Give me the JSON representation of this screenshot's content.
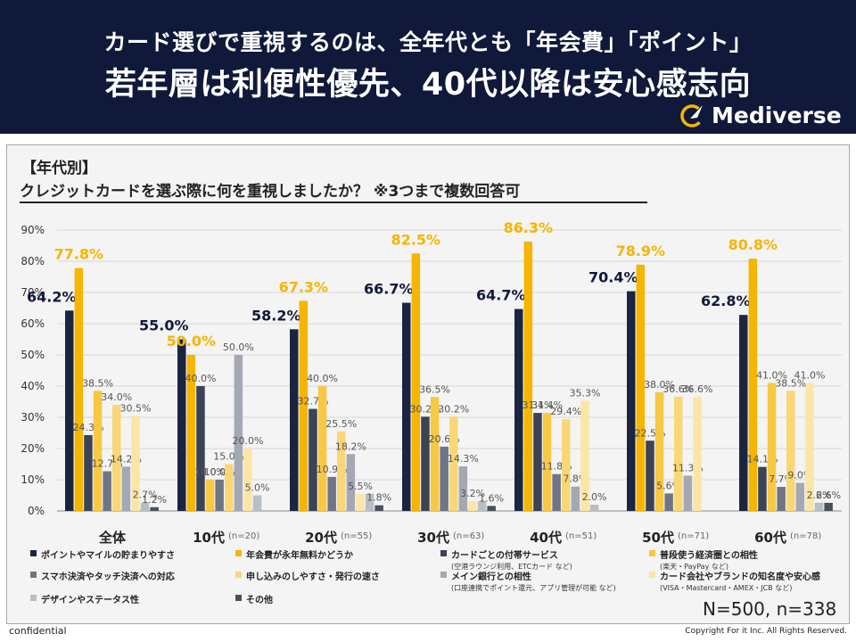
{
  "header": {
    "subtitle": "カード選びで重視するのは、全年代とも「年会費」「ポイント」",
    "title": "若年層は利便性優先、40代以降は安心感志向",
    "brand": "Mediverse"
  },
  "section_label": "【年代別】",
  "question": "クレジットカードを選ぶ際に何を重視しましたか？ ※3つまで複数回答可",
  "sample_note": "N=500, n=338",
  "footer": {
    "left": "confidential",
    "right": "Copyright For it Inc. All Rights Reserved."
  },
  "colors": {
    "navy": "#10193a",
    "accent": "#f5b500",
    "label_accent": "#e8a800"
  },
  "chart_data": {
    "type": "bar",
    "ylim": [
      0,
      90
    ],
    "ytick_labels": [
      "0%",
      "10%",
      "20%",
      "30%",
      "40%",
      "50%",
      "60%",
      "70%",
      "80%",
      "90%"
    ],
    "groups": [
      {
        "label": "全体",
        "n": ""
      },
      {
        "label": "10代",
        "n": "(n=20)"
      },
      {
        "label": "20代",
        "n": "(n=55)"
      },
      {
        "label": "30代",
        "n": "(n=63)"
      },
      {
        "label": "40代",
        "n": "(n=51)"
      },
      {
        "label": "50代",
        "n": "(n=71)"
      },
      {
        "label": "60代",
        "n": "(n=78)"
      }
    ],
    "series": [
      {
        "name": "ポイントやマイルの貯まりやすさ",
        "color": "#1b2540",
        "note": "",
        "values": [
          64.2,
          55.0,
          58.2,
          66.7,
          64.7,
          70.4,
          62.8
        ]
      },
      {
        "name": "年会費が永年無料かどうか",
        "color": "#f5b500",
        "note": "",
        "values": [
          77.8,
          50.0,
          67.3,
          82.5,
          86.3,
          78.9,
          80.8
        ]
      },
      {
        "name": "カードごとの付帯サービス",
        "color": "#3b4354",
        "note": "(空港ラウンジ利用、ETCカード など)",
        "values": [
          24.3,
          40.0,
          32.7,
          30.2,
          31.4,
          22.5,
          14.1
        ]
      },
      {
        "name": "普段使う経済圏との相性",
        "color": "#f7c844",
        "note": "(楽天・PayPay など)",
        "values": [
          38.5,
          10.0,
          40.0,
          36.5,
          31.4,
          38.0,
          41.0
        ]
      },
      {
        "name": "スマホ決済やタッチ決済への対応",
        "color": "#6f7584",
        "note": "",
        "values": [
          12.7,
          10.0,
          10.9,
          20.6,
          11.8,
          5.6,
          7.7
        ]
      },
      {
        "name": "申し込みのしやすさ・発行の速さ",
        "color": "#f9d777",
        "note": "",
        "values": [
          34.0,
          15.0,
          25.5,
          30.2,
          29.4,
          36.6,
          38.5
        ]
      },
      {
        "name": "メイン銀行との相性",
        "color": "#a3a8b4",
        "note": "(口座連携でポイント還元、アプリ管理が可能 など)",
        "values": [
          14.2,
          50.0,
          18.2,
          14.3,
          7.8,
          11.3,
          9.0
        ]
      },
      {
        "name": "カード会社やブランドの知名度や安心感",
        "color": "#fbe6a6",
        "note": "(VISA・Mastercard・AMEX・JCB など)",
        "values": [
          30.5,
          20.0,
          5.5,
          3.2,
          35.3,
          36.6,
          41.0
        ]
      },
      {
        "name": "デザインやステータス性",
        "color": "#b9bdc6",
        "note": "",
        "values": [
          2.7,
          5.0,
          5.5,
          3.2,
          2.0,
          0.0,
          2.6
        ]
      },
      {
        "name": "その他",
        "color": "#4a4f5a",
        "note": "",
        "values": [
          1.2,
          0.0,
          1.8,
          1.6,
          0.0,
          0.0,
          2.6
        ]
      }
    ],
    "value_labels": [
      [
        "64.2%",
        "77.8%",
        "24.3%",
        "38.5%",
        "12.7%",
        "34.0%",
        "14.2%",
        "30.5%",
        "2.7%",
        "1.2%"
      ],
      [
        "55.0%",
        "50.0%",
        "40.0%",
        "10.0%",
        "10.0%",
        "15.0%",
        "50.0%",
        "20.0%",
        "5.0%",
        ""
      ],
      [
        "58.2%",
        "67.3%",
        "32.7%",
        "40.0%",
        "10.9%",
        "25.5%",
        "18.2%",
        "5.5%",
        "",
        "1.8%"
      ],
      [
        "66.7%",
        "82.5%",
        "30.2%",
        "36.5%",
        "20.6%",
        "30.2%",
        "14.3%",
        "3.2%",
        "",
        "1.6%"
      ],
      [
        "64.7%",
        "86.3%",
        "31.4%",
        "31.4%",
        "11.8%",
        "29.4%",
        "7.8%",
        "35.3%",
        "2.0%",
        ""
      ],
      [
        "70.4%",
        "78.9%",
        "22.5%",
        "38.0%",
        "5.6%",
        "36.6%",
        "11.3%",
        "36.6%",
        "",
        ""
      ],
      [
        "62.8%",
        "80.8%",
        "14.1%",
        "41.0%",
        "7.7%",
        "38.5%",
        "9.0%",
        "41.0%",
        "2.6%",
        "2.6%"
      ]
    ]
  }
}
